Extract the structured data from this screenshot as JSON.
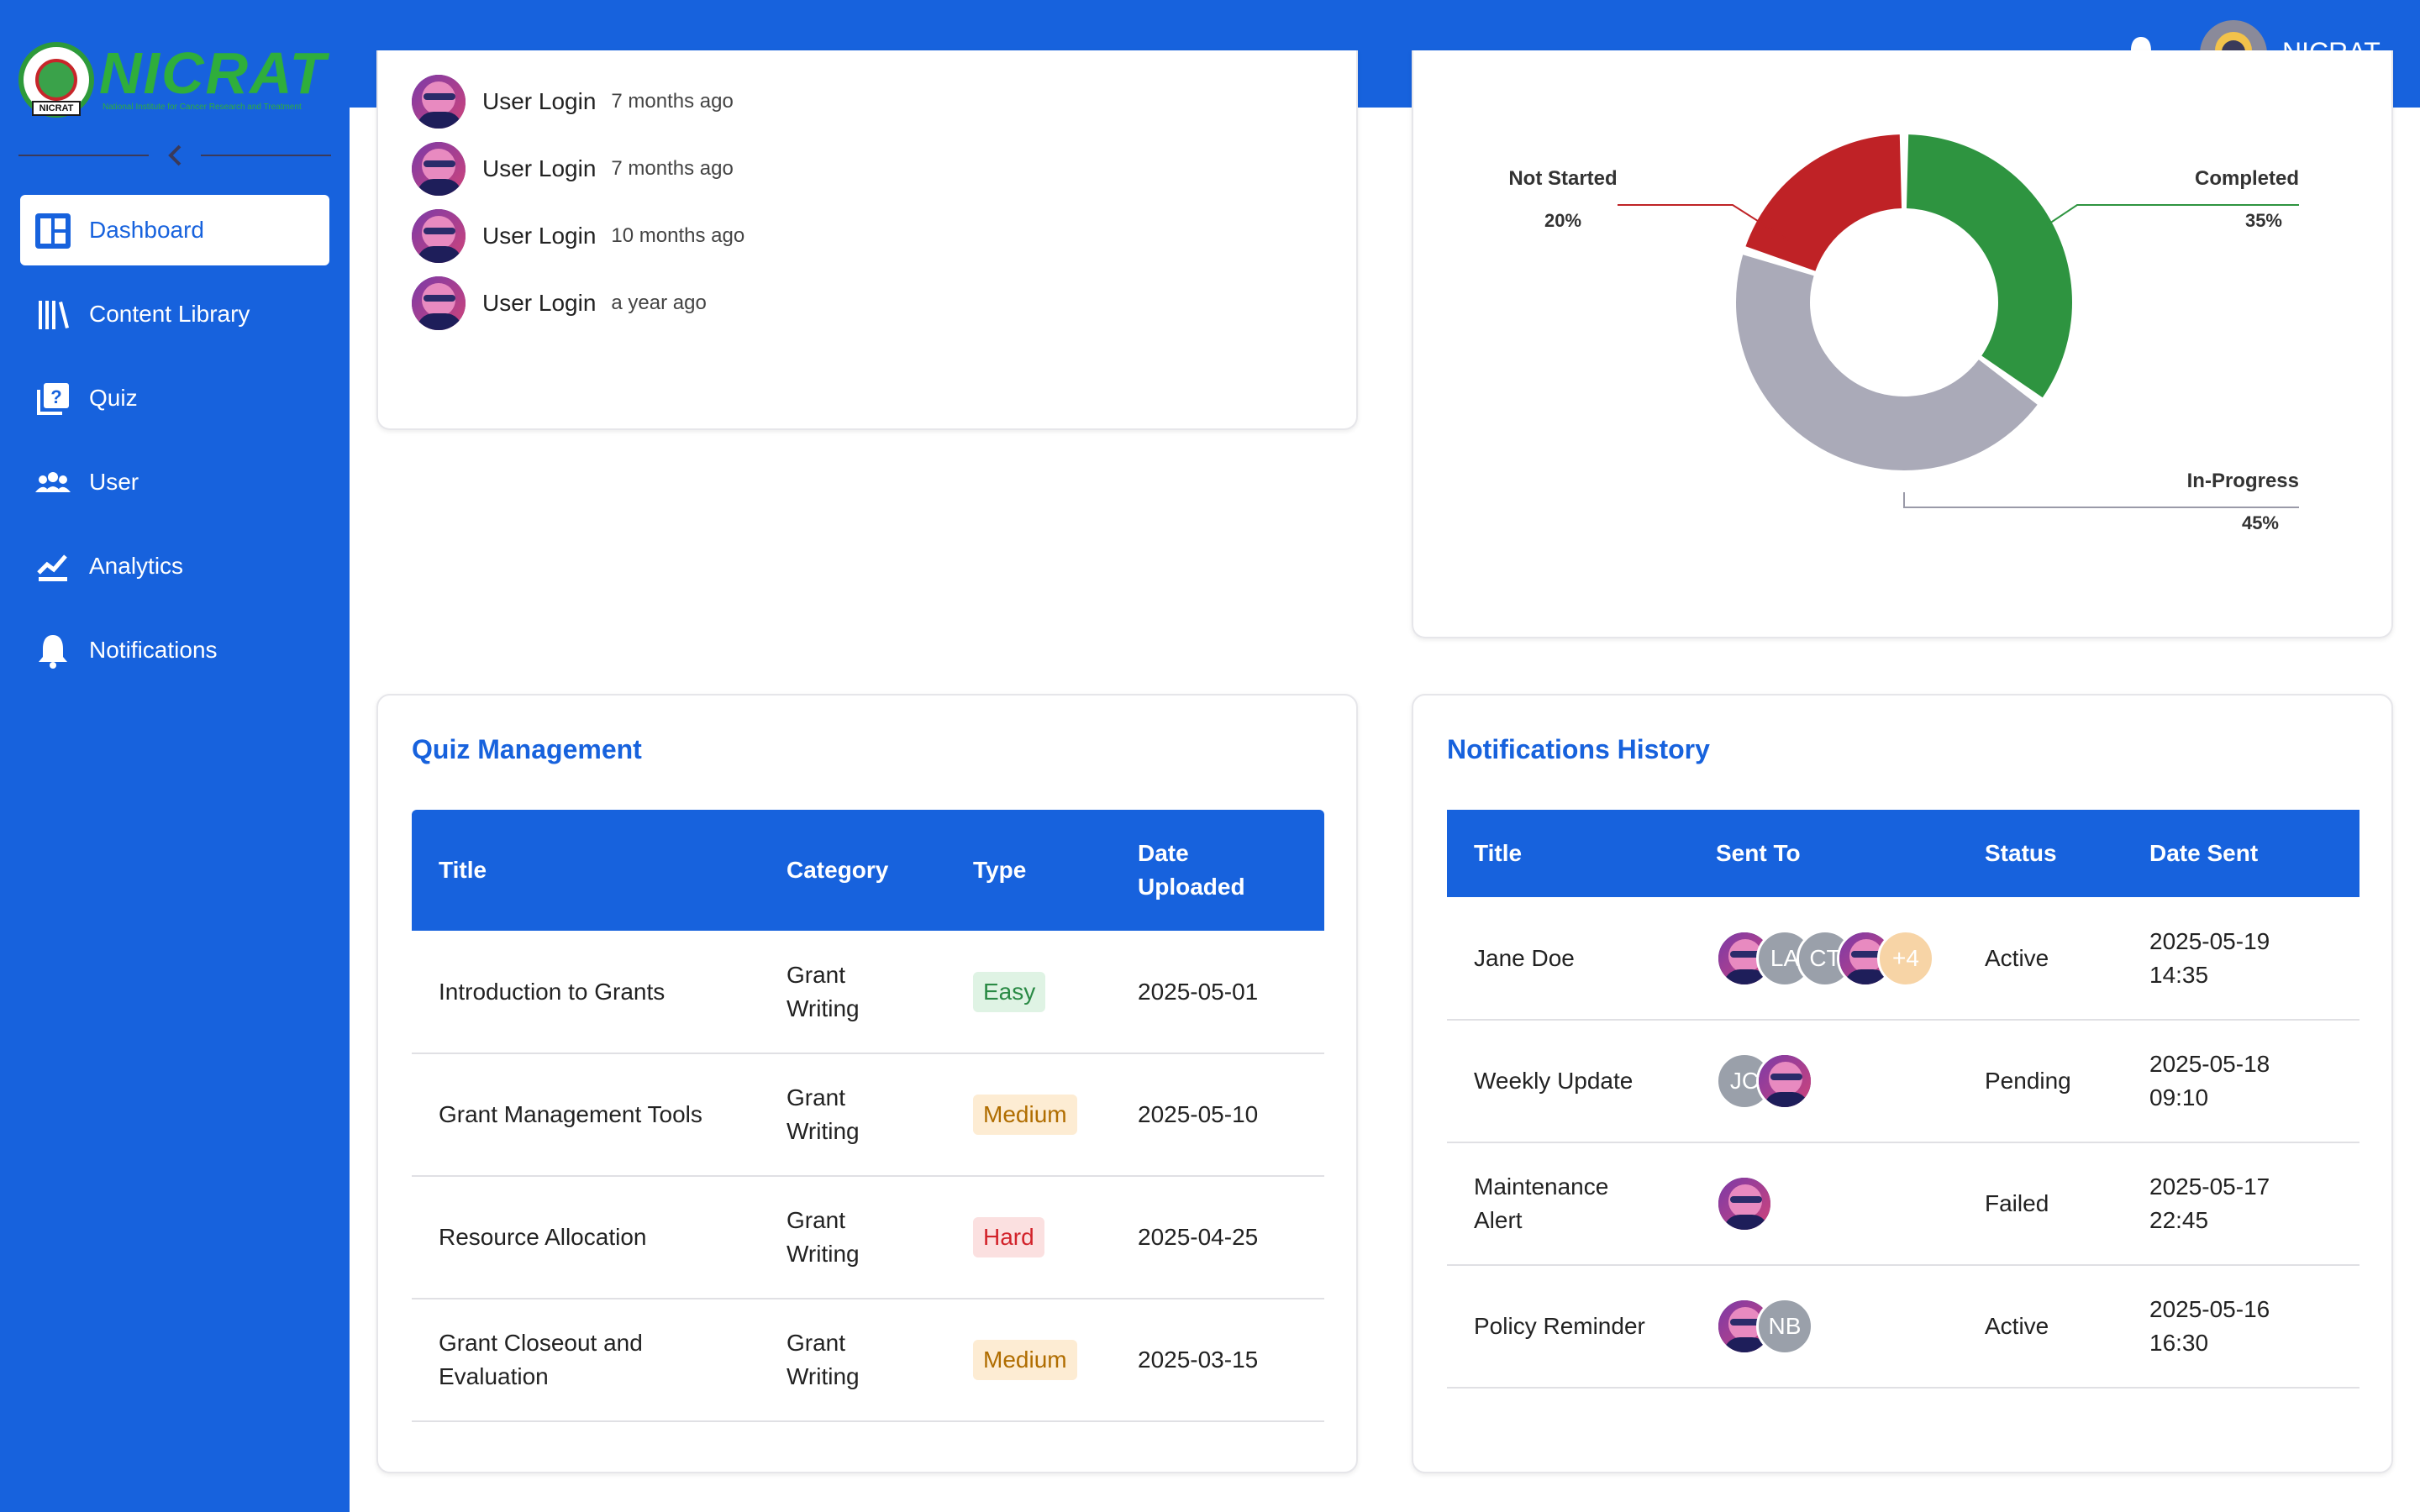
{
  "brand": {
    "logo_text": "NICRAT",
    "logo_subtitle": "National Institute for Cancer Research and Treatment",
    "logo_tag": "NICRAT",
    "primary_color": "#1762dd",
    "green_color": "#2fae3c"
  },
  "header": {
    "user_name": "NICRAT",
    "bell_icon": "bell-icon"
  },
  "sidebar": {
    "items": [
      {
        "label": "Dashboard",
        "icon": "dashboard-icon",
        "active": true
      },
      {
        "label": "Content Library",
        "icon": "library-icon",
        "active": false
      },
      {
        "label": "Quiz",
        "icon": "quiz-icon",
        "active": false
      },
      {
        "label": "User",
        "icon": "users-icon",
        "active": false
      },
      {
        "label": "Analytics",
        "icon": "analytics-icon",
        "active": false
      },
      {
        "label": "Notifications",
        "icon": "bell-icon",
        "active": false
      }
    ]
  },
  "activity": {
    "items": [
      {
        "title": "User Login",
        "time": "7 months ago"
      },
      {
        "title": "User Login",
        "time": "7 months ago"
      },
      {
        "title": "User Login",
        "time": "10 months ago"
      },
      {
        "title": "User Login",
        "time": "a year ago"
      }
    ]
  },
  "progress_chart": {
    "not_started_label": "Not Started",
    "not_started_pct": "20%",
    "completed_label": "Completed",
    "completed_pct": "35%",
    "in_progress_label": "In-Progress",
    "in_progress_pct": "45%",
    "colors": {
      "completed": "#2e9440",
      "in_progress": "#aaaab8",
      "not_started": "#bf2226"
    }
  },
  "chart_data": {
    "type": "pie",
    "categories": [
      "Completed",
      "In-Progress",
      "Not Started"
    ],
    "values": [
      35,
      45,
      20
    ],
    "title": "",
    "legend": "outside-labels"
  },
  "quiz": {
    "title": "Quiz Management",
    "headers": [
      "Title",
      "Category",
      "Type",
      "Date Uploaded"
    ],
    "rows": [
      {
        "title": "Introduction to Grants",
        "category": "Grant Writing",
        "type": "Easy",
        "date": "2025-05-01"
      },
      {
        "title": "Grant Management Tools",
        "category": "Grant Writing",
        "type": "Medium",
        "date": "2025-05-10"
      },
      {
        "title": "Resource Allocation",
        "category": "Grant Writing",
        "type": "Hard",
        "date": "2025-04-25"
      },
      {
        "title": "Grant Closeout and Evaluation",
        "category": "Grant Writing",
        "type": "Medium",
        "date": "2025-03-15"
      }
    ]
  },
  "notifications": {
    "title": "Notifications History",
    "headers": [
      "Title",
      "Sent To",
      "Status",
      "Date Sent"
    ],
    "rows": [
      {
        "title": "Jane Doe",
        "status": "Active",
        "date": "2025-05-19 14:35",
        "recipients": [
          "photo",
          "LA",
          "CT",
          "photo"
        ],
        "more": "+4"
      },
      {
        "title": "Weekly Update",
        "status": "Pending",
        "date": "2025-05-18 09:10",
        "recipients": [
          "JC",
          "photo"
        ],
        "more": ""
      },
      {
        "title": "Maintenance Alert",
        "status": "Failed",
        "date": "2025-05-17 22:45",
        "recipients": [
          "photo"
        ],
        "more": ""
      },
      {
        "title": "Policy Reminder",
        "status": "Active",
        "date": "2025-05-16 16:30",
        "recipients": [
          "photo",
          "NB"
        ],
        "more": ""
      }
    ]
  }
}
